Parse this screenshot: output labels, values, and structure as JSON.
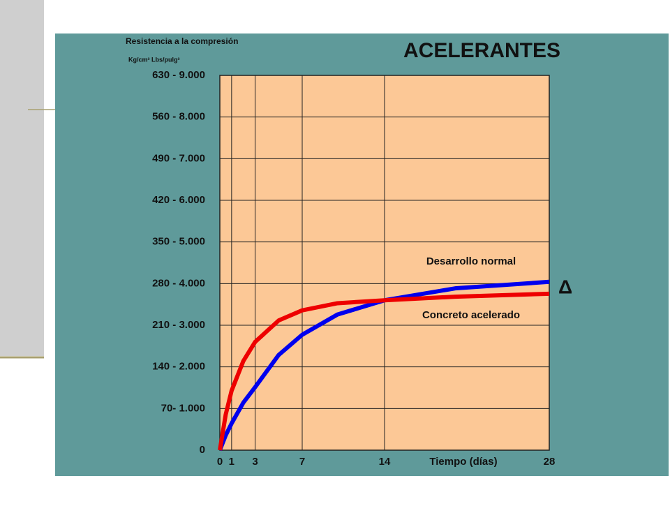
{
  "chart_data": {
    "type": "line",
    "title": "ACELERANTES",
    "y_label": "Resistencia a la compresión",
    "y_units": "Kg/cm²  Lbs/pulg²",
    "x_label": "Tiempo (días)",
    "annotation": "Δ",
    "x": [
      0,
      0.5,
      1,
      2,
      3,
      5,
      7,
      10,
      14,
      20,
      28
    ],
    "series": [
      {
        "name": "Desarrollo normal",
        "color": "#0000ee",
        "values": [
          0,
          25,
          45,
          80,
          106,
          160,
          194,
          228,
          252,
          272,
          283
        ]
      },
      {
        "name": "Concreto acelerado",
        "color": "#ee0000",
        "values": [
          0,
          60,
          100,
          150,
          182,
          218,
          235,
          247,
          252,
          258,
          263
        ]
      }
    ],
    "xlim": [
      0,
      28
    ],
    "xticks": [
      0,
      1,
      3,
      7,
      14,
      28
    ],
    "ylim": [
      0,
      630
    ],
    "yticks": [
      0,
      {
        "value": 70,
        "label": "70- 1.000"
      },
      {
        "value": 140,
        "label": "140 - 2.000"
      },
      {
        "value": 210,
        "label": "210 - 3.000"
      },
      {
        "value": 280,
        "label": "280 - 4.000"
      },
      {
        "value": 350,
        "label": "350 - 5.000"
      },
      {
        "value": 420,
        "label": "420 - 6.000"
      },
      {
        "value": 490,
        "label": "490 - 7.000"
      },
      {
        "value": 560,
        "label": "560 - 8.000"
      },
      {
        "value": 630,
        "label": "630 - 9.000"
      }
    ],
    "grid": true
  }
}
